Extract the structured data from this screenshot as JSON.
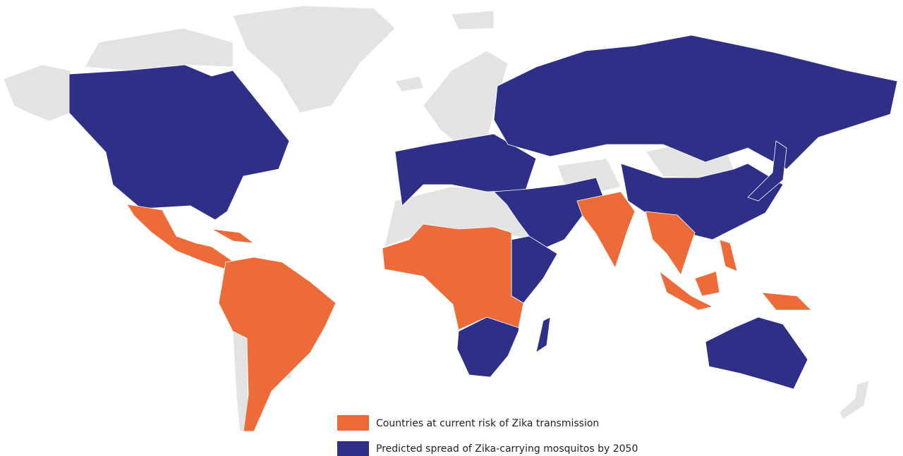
{
  "legend": [
    {
      "label": "Countries at current risk of Zika transmission",
      "color": "#ec6b38"
    },
    {
      "label": "Predicted spread of Zika-carrying mosquitos by 2050",
      "color": "#2e3087"
    }
  ],
  "base_color": "#e3e3e3"
}
